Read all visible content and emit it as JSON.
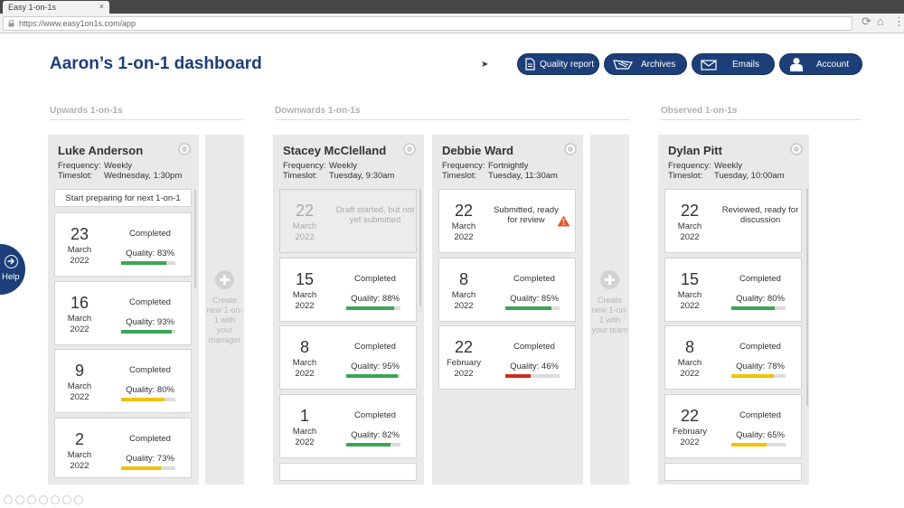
{
  "browser": {
    "tab_title": "Easy 1-on-1s",
    "tab_close": "×",
    "url": "https://www.easy1on1s.com/app"
  },
  "page": {
    "title": "Aaron’s 1-on-1 dashboard"
  },
  "header_buttons": {
    "quality_report": "Quality report",
    "archives": "Archives",
    "emails": "Emails",
    "account": "Account"
  },
  "sections": {
    "upwards": "Upwards 1-on-1s",
    "downwards": "Downwards 1-on-1s",
    "observed": "Observed 1-on-1s"
  },
  "labels": {
    "frequency": "Frequency:",
    "timeslot": "Timeslot:"
  },
  "create": {
    "manager": "Create new 1-on-1 with your manager",
    "team": "Create new 1-on-1 with your team"
  },
  "help": {
    "label": "Help"
  },
  "colors": {
    "brand": "#1c3f7a",
    "green": "#3aa655",
    "yellow": "#f2c200",
    "red": "#d22a1e"
  },
  "columns": [
    {
      "name": "Luke Anderson",
      "frequency": "Weekly",
      "timeslot": "Wednesday, 1:30pm",
      "prep": "Start preparing for next 1-on-1",
      "cards": [
        {
          "day": "23",
          "month": "March",
          "year": "2022",
          "status": "Completed",
          "quality_label": "Quality: 83%",
          "quality": 83,
          "color": "green"
        },
        {
          "day": "16",
          "month": "March",
          "year": "2022",
          "status": "Completed",
          "quality_label": "Quality: 93%",
          "quality": 93,
          "color": "green"
        },
        {
          "day": "9",
          "month": "March",
          "year": "2022",
          "status": "Completed",
          "quality_label": "Quality: 80%",
          "quality": 80,
          "color": "yellow"
        },
        {
          "day": "2",
          "month": "March",
          "year": "2022",
          "status": "Completed",
          "quality_label": "Quality: 73%",
          "quality": 73,
          "color": "yellow"
        }
      ]
    },
    {
      "name": "Stacey McClelland",
      "frequency": "Weekly",
      "timeslot": "Tuesday, 9:30am",
      "cards": [
        {
          "day": "22",
          "month": "March",
          "year": "2022",
          "status": "Draft started, but not yet submitted",
          "draft": true
        },
        {
          "day": "15",
          "month": "March",
          "year": "2022",
          "status": "Completed",
          "quality_label": "Quality: 88%",
          "quality": 88,
          "color": "green"
        },
        {
          "day": "8",
          "month": "March",
          "year": "2022",
          "status": "Completed",
          "quality_label": "Quality: 95%",
          "quality": 95,
          "color": "green"
        },
        {
          "day": "1",
          "month": "March",
          "year": "2022",
          "status": "Completed",
          "quality_label": "Quality: 82%",
          "quality": 82,
          "color": "green"
        }
      ]
    },
    {
      "name": "Debbie Ward",
      "frequency": "Fortnightly",
      "timeslot": "Tuesday, 11:30am",
      "cards": [
        {
          "day": "22",
          "month": "March",
          "year": "2022",
          "status": "Submitted, ready for review",
          "warning": true
        },
        {
          "day": "8",
          "month": "March",
          "year": "2022",
          "status": "Completed",
          "quality_label": "Quality: 85%",
          "quality": 85,
          "color": "green"
        },
        {
          "day": "22",
          "month": "February",
          "year": "2022",
          "status": "Completed",
          "quality_label": "Quality: 46%",
          "quality": 46,
          "color": "red"
        }
      ]
    },
    {
      "name": "Dylan Pitt",
      "frequency": "Weekly",
      "timeslot": "Tuesday, 10:00am",
      "cards": [
        {
          "day": "22",
          "month": "March",
          "year": "2022",
          "status": "Reviewed, ready for discussion"
        },
        {
          "day": "15",
          "month": "March",
          "year": "2022",
          "status": "Completed",
          "quality_label": "Quality: 80%",
          "quality": 80,
          "color": "green"
        },
        {
          "day": "8",
          "month": "March",
          "year": "2022",
          "status": "Completed",
          "quality_label": "Quality: 78%",
          "quality": 78,
          "color": "yellow"
        },
        {
          "day": "22",
          "month": "February",
          "year": "2022",
          "status": "Completed",
          "quality_label": "Quality: 65%",
          "quality": 65,
          "color": "yellow"
        }
      ]
    }
  ]
}
